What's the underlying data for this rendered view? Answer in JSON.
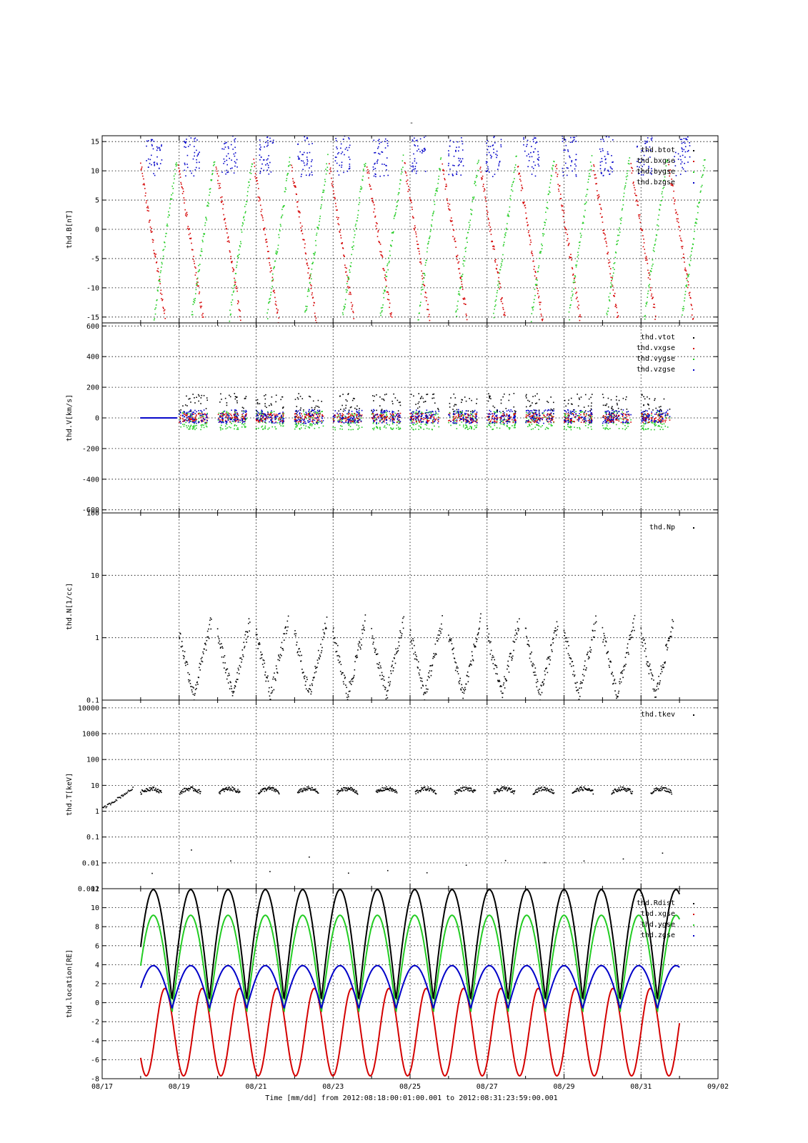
{
  "figure": {
    "top_title": "-",
    "xaxis_title": "Time [mm/dd]  from 2012:08:18:00:01:00.001  to  2012:08:31:23:59:00.001",
    "x_tick_labels": [
      "08/17",
      "08/19",
      "08/21",
      "08/23",
      "08/25",
      "08/27",
      "08/29",
      "08/31",
      "09/02"
    ],
    "colors": {
      "black": "#000000",
      "red": "#d40000",
      "green": "#22cc22",
      "blue": "#0000c8"
    }
  },
  "chart_data": [
    {
      "type": "scatter",
      "ylabel": "thd.B[nT]",
      "yscale": "linear",
      "ylim": [
        -16,
        16
      ],
      "yticks": [
        -15,
        -10,
        -5,
        0,
        5,
        10,
        15
      ],
      "ytick_labels": [
        "-15",
        "-10",
        "-5",
        "0",
        "5",
        "10",
        "15"
      ],
      "xlim_days": [
        0,
        16
      ],
      "legend_position": "top-right",
      "series": [
        {
          "name": "thd.btot",
          "color": "#000000"
        },
        {
          "name": "thd.bxgse",
          "color": "#d40000"
        },
        {
          "name": "thd.bygse",
          "color": "#22cc22"
        },
        {
          "name": "thd.bzgse",
          "color": "#0000c8"
        }
      ]
    },
    {
      "type": "scatter",
      "ylabel": "thd.V[km/s]",
      "yscale": "linear",
      "ylim": [
        -620,
        620
      ],
      "yticks": [
        -600,
        -400,
        -200,
        0,
        200,
        400,
        600
      ],
      "ytick_labels": [
        "-600",
        "-400",
        "-200",
        "0",
        "200",
        "400",
        "600"
      ],
      "xlim_days": [
        0,
        16
      ],
      "legend_position": "top-right",
      "series": [
        {
          "name": "thd.vtot",
          "color": "#000000"
        },
        {
          "name": "thd.vxgse",
          "color": "#d40000"
        },
        {
          "name": "thd.vygse",
          "color": "#22cc22"
        },
        {
          "name": "thd.vzgse",
          "color": "#0000c8"
        }
      ]
    },
    {
      "type": "scatter",
      "ylabel": "thd.N[1/cc]",
      "yscale": "log",
      "ylim": [
        0.1,
        100
      ],
      "yticks": [
        0.1,
        1,
        10,
        100
      ],
      "ytick_labels": [
        "0.1",
        "1",
        "10",
        "100"
      ],
      "xlim_days": [
        0,
        16
      ],
      "legend_position": "top-right",
      "series": [
        {
          "name": "thd.Np",
          "color": "#000000"
        }
      ]
    },
    {
      "type": "scatter",
      "ylabel": "thd.T[keV]",
      "yscale": "log",
      "ylim": [
        0.001,
        20000
      ],
      "yticks": [
        0.001,
        0.01,
        0.1,
        1,
        10,
        100,
        1000,
        10000
      ],
      "ytick_labels": [
        "0.001",
        "0.01",
        "0.1",
        "1",
        "10",
        "100",
        "1000",
        "10000"
      ],
      "xlim_days": [
        0,
        16
      ],
      "legend_position": "top-right",
      "series": [
        {
          "name": "thd.tkev",
          "color": "#000000"
        }
      ]
    },
    {
      "type": "line",
      "ylabel": "thd.location[RE]",
      "yscale": "linear",
      "ylim": [
        -8,
        12
      ],
      "yticks": [
        -8,
        -6,
        -4,
        -2,
        0,
        2,
        4,
        6,
        8,
        10,
        12
      ],
      "ytick_labels": [
        "-8",
        "-6",
        "-4",
        "-2",
        "0",
        "2",
        "4",
        "6",
        "8",
        "10",
        "12"
      ],
      "xlim_days": [
        0,
        16
      ],
      "legend_position": "top-right",
      "series": [
        {
          "name": "thd.Rdist",
          "color": "#000000",
          "peak": 11.9,
          "trough": 0.3
        },
        {
          "name": "thd.xgse",
          "color": "#d40000",
          "peak": 1.5,
          "trough": -7.7
        },
        {
          "name": "thd.ygse",
          "color": "#22cc22",
          "peak": 9.2,
          "trough": -1.0
        },
        {
          "name": "thd.zgse",
          "color": "#0000c8",
          "peak": 3.9,
          "trough": -0.6
        }
      ],
      "orbit_period_days": 0.97,
      "data_start_day": 1.0,
      "data_end_day": 15.0
    }
  ]
}
